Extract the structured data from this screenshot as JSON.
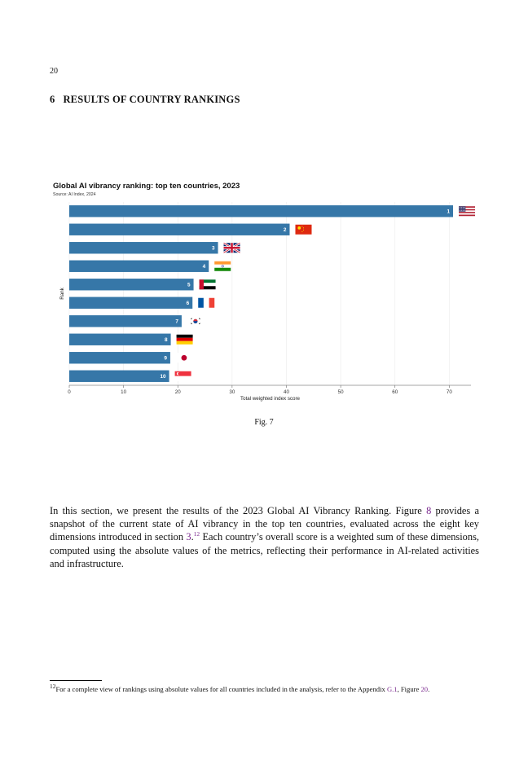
{
  "page": {
    "number": "20",
    "section_number": "6",
    "section_title": "RESULTS OF COUNTRY RANKINGS"
  },
  "figure": {
    "caption": "Fig. 7"
  },
  "chart_data": {
    "type": "bar",
    "orientation": "horizontal",
    "title": "Global AI vibrancy ranking: top ten countries, 2023",
    "subtitle": "Source: AI Index, 2024",
    "xlabel": "Total weighted index score",
    "ylabel": "Rank",
    "xlim": [
      0,
      74
    ],
    "xticks": [
      0,
      10,
      20,
      30,
      40,
      50,
      60,
      70
    ],
    "grid": "vertical",
    "bar_color": "#3677a8",
    "categories": [
      "1",
      "2",
      "3",
      "4",
      "5",
      "6",
      "7",
      "8",
      "9",
      "10"
    ],
    "values": [
      70.7,
      40.6,
      27.4,
      25.7,
      22.9,
      22.7,
      20.7,
      18.7,
      18.6,
      18.4
    ],
    "countries": [
      "United States",
      "China",
      "United Kingdom",
      "India",
      "United Arab Emirates",
      "France",
      "South Korea",
      "Germany",
      "Japan",
      "Singapore"
    ],
    "flag_icons": [
      "us-flag-icon",
      "china-flag-icon",
      "uk-flag-icon",
      "india-flag-icon",
      "uae-flag-icon",
      "france-flag-icon",
      "south-korea-flag-icon",
      "germany-flag-icon",
      "japan-flag-icon",
      "singapore-flag-icon"
    ]
  },
  "body": {
    "paragraph": {
      "p1": "In this section, we present the results of the 2023 Global AI Vibrancy Ranking. Figure ",
      "fig_ref": "8",
      "p2": " provides a snapshot of the current state of AI vibrancy in the top ten countries, evaluated across the eight key dimensions introduced in section ",
      "sec_ref": "3",
      "p3": ".",
      "fn_mark": "12",
      "p4": " Each country’s overall score is a weighted sum of these dimensions, computed using the absolute values of the metrics, reflecting their performance in AI-related activities and infrastructure."
    }
  },
  "footnote": {
    "mark": "12",
    "text1": "For a complete view of rankings using absolute values for all countries included in the analysis, refer to the Appendix ",
    "appendix_ref": "G.1",
    "text2": ", Figure ",
    "figure_ref": "20",
    "text3": "."
  }
}
